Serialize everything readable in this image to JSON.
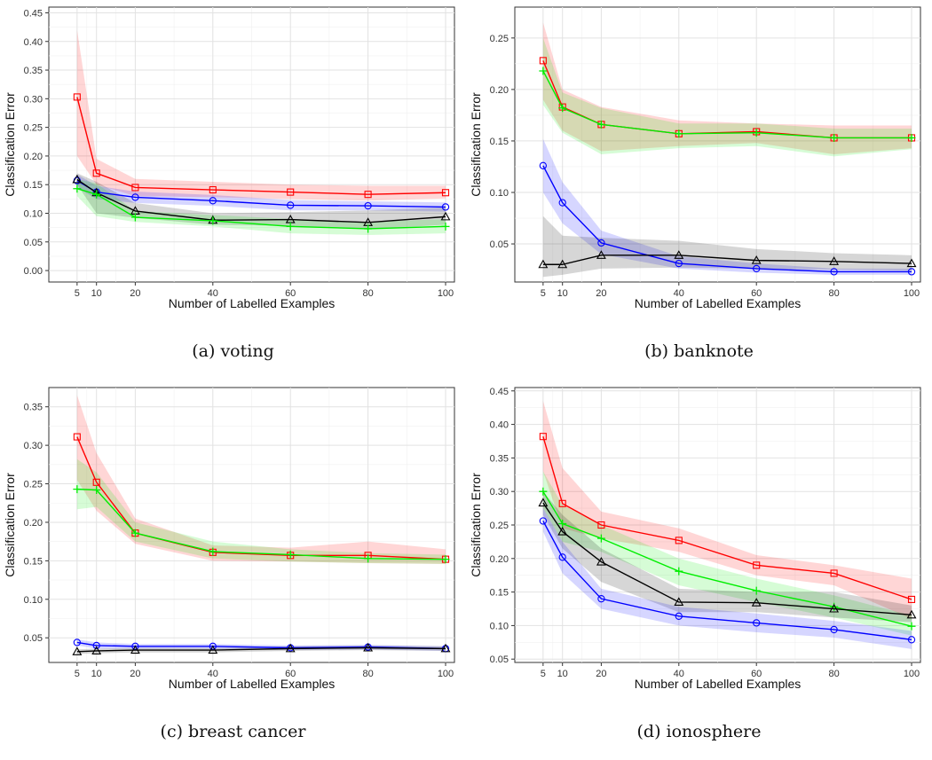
{
  "chart_data": [
    {
      "type": "line",
      "caption": "(a)  voting",
      "xlabel": "Number of Labelled Examples",
      "ylabel": "Classification Error",
      "x": [
        5,
        10,
        20,
        40,
        60,
        80,
        100
      ],
      "xlim": [
        0,
        100
      ],
      "ylim": [
        -0.02,
        0.46
      ],
      "yticks": [
        0.0,
        0.05,
        0.1,
        0.15,
        0.2,
        0.25,
        0.3,
        0.35,
        0.4,
        0.45
      ],
      "grid": true,
      "series": [
        {
          "color": "#ff0000",
          "marker": "square",
          "values": [
            0.303,
            0.17,
            0.145,
            0.141,
            0.137,
            0.133,
            0.136
          ],
          "lower": [
            0.2,
            0.15,
            0.13,
            0.128,
            0.125,
            0.122,
            0.126
          ],
          "upper": [
            0.42,
            0.195,
            0.16,
            0.155,
            0.15,
            0.148,
            0.148
          ]
        },
        {
          "color": "#0000ff",
          "marker": "circle",
          "values": [
            0.157,
            0.137,
            0.128,
            0.122,
            0.114,
            0.113,
            0.111
          ],
          "lower": [
            0.145,
            0.125,
            0.118,
            0.113,
            0.105,
            0.105,
            0.103
          ],
          "upper": [
            0.168,
            0.148,
            0.138,
            0.132,
            0.123,
            0.121,
            0.119
          ]
        },
        {
          "color": "#000000",
          "marker": "triangle",
          "values": [
            0.159,
            0.136,
            0.104,
            0.088,
            0.089,
            0.084,
            0.094
          ],
          "lower": [
            0.15,
            0.1,
            0.092,
            0.08,
            0.078,
            0.072,
            0.08
          ],
          "upper": [
            0.17,
            0.155,
            0.118,
            0.1,
            0.102,
            0.105,
            0.11
          ]
        },
        {
          "color": "#00ee00",
          "marker": "plus",
          "values": [
            0.143,
            0.133,
            0.093,
            0.087,
            0.077,
            0.073,
            0.077
          ],
          "lower": [
            0.13,
            0.095,
            0.085,
            0.077,
            0.065,
            0.062,
            0.065
          ],
          "upper": [
            0.16,
            0.152,
            0.104,
            0.097,
            0.09,
            0.085,
            0.09
          ]
        }
      ]
    },
    {
      "type": "line",
      "caption": "(b)  banknote",
      "xlabel": "Number of Labelled Examples",
      "ylabel": "Classification Error",
      "x": [
        5,
        10,
        20,
        40,
        60,
        80,
        100
      ],
      "xlim": [
        0,
        100
      ],
      "ylim": [
        0.013,
        0.28
      ],
      "yticks": [
        0.05,
        0.1,
        0.15,
        0.2,
        0.25
      ],
      "grid": true,
      "series": [
        {
          "color": "#ff0000",
          "marker": "square",
          "values": [
            0.228,
            0.183,
            0.166,
            0.157,
            0.159,
            0.153,
            0.153
          ],
          "lower": [
            0.19,
            0.16,
            0.14,
            0.145,
            0.148,
            0.137,
            0.143
          ],
          "upper": [
            0.265,
            0.2,
            0.183,
            0.17,
            0.167,
            0.165,
            0.165
          ]
        },
        {
          "color": "#00ee00",
          "marker": "plus",
          "values": [
            0.218,
            0.182,
            0.166,
            0.157,
            0.158,
            0.153,
            0.153
          ],
          "lower": [
            0.185,
            0.158,
            0.137,
            0.143,
            0.145,
            0.135,
            0.142
          ],
          "upper": [
            0.25,
            0.197,
            0.182,
            0.167,
            0.167,
            0.162,
            0.162
          ]
        },
        {
          "color": "#0000ff",
          "marker": "circle",
          "values": [
            0.126,
            0.09,
            0.051,
            0.031,
            0.026,
            0.023,
            0.023
          ],
          "lower": [
            0.1,
            0.07,
            0.04,
            0.026,
            0.022,
            0.02,
            0.02
          ],
          "upper": [
            0.152,
            0.11,
            0.063,
            0.038,
            0.031,
            0.026,
            0.026
          ]
        },
        {
          "color": "#000000",
          "marker": "triangle",
          "values": [
            0.03,
            0.03,
            0.039,
            0.039,
            0.034,
            0.033,
            0.031
          ],
          "lower": [
            0.018,
            0.02,
            0.026,
            0.027,
            0.026,
            0.025,
            0.024
          ],
          "upper": [
            0.077,
            0.058,
            0.056,
            0.053,
            0.045,
            0.041,
            0.039
          ]
        }
      ]
    },
    {
      "type": "line",
      "caption": "(c)  breast cancer",
      "xlabel": "Number of Labelled Examples",
      "ylabel": "Classification Error",
      "x": [
        5,
        10,
        20,
        40,
        60,
        80,
        100
      ],
      "xlim": [
        0,
        100
      ],
      "ylim": [
        0.018,
        0.375
      ],
      "yticks": [
        0.05,
        0.1,
        0.15,
        0.2,
        0.25,
        0.3,
        0.35
      ],
      "grid": true,
      "series": [
        {
          "color": "#ff0000",
          "marker": "square",
          "values": [
            0.311,
            0.252,
            0.186,
            0.161,
            0.157,
            0.157,
            0.152
          ],
          "lower": [
            0.255,
            0.215,
            0.172,
            0.15,
            0.149,
            0.147,
            0.146
          ],
          "upper": [
            0.365,
            0.29,
            0.205,
            0.17,
            0.167,
            0.175,
            0.165
          ]
        },
        {
          "color": "#00ee00",
          "marker": "plus",
          "values": [
            0.243,
            0.242,
            0.186,
            0.162,
            0.158,
            0.153,
            0.152
          ],
          "lower": [
            0.217,
            0.22,
            0.175,
            0.153,
            0.149,
            0.147,
            0.146
          ],
          "upper": [
            0.282,
            0.265,
            0.2,
            0.175,
            0.165,
            0.16,
            0.158
          ]
        },
        {
          "color": "#0000ff",
          "marker": "circle",
          "values": [
            0.044,
            0.04,
            0.039,
            0.039,
            0.037,
            0.038,
            0.036
          ],
          "lower": [
            0.04,
            0.036,
            0.036,
            0.036,
            0.034,
            0.035,
            0.033
          ],
          "upper": [
            0.048,
            0.044,
            0.042,
            0.042,
            0.04,
            0.041,
            0.039
          ]
        },
        {
          "color": "#000000",
          "marker": "triangle",
          "values": [
            0.032,
            0.033,
            0.034,
            0.034,
            0.036,
            0.037,
            0.036
          ],
          "lower": [
            0.029,
            0.03,
            0.031,
            0.031,
            0.033,
            0.034,
            0.033
          ],
          "upper": [
            0.035,
            0.036,
            0.037,
            0.037,
            0.039,
            0.04,
            0.039
          ]
        }
      ]
    },
    {
      "type": "line",
      "caption": "(d)  ionosphere",
      "xlabel": "Number of Labelled Examples",
      "ylabel": "Classification Error",
      "x": [
        5,
        10,
        20,
        40,
        60,
        80,
        100
      ],
      "xlim": [
        0,
        100
      ],
      "ylim": [
        0.045,
        0.455
      ],
      "yticks": [
        0.05,
        0.1,
        0.15,
        0.2,
        0.25,
        0.3,
        0.35,
        0.4,
        0.45
      ],
      "grid": true,
      "series": [
        {
          "color": "#ff0000",
          "marker": "square",
          "values": [
            0.382,
            0.282,
            0.25,
            0.227,
            0.19,
            0.178,
            0.139
          ],
          "lower": [
            0.33,
            0.245,
            0.23,
            0.21,
            0.175,
            0.16,
            0.11
          ],
          "upper": [
            0.435,
            0.335,
            0.27,
            0.245,
            0.205,
            0.19,
            0.17
          ]
        },
        {
          "color": "#00ee00",
          "marker": "plus",
          "values": [
            0.3,
            0.252,
            0.23,
            0.181,
            0.152,
            0.128,
            0.099
          ],
          "lower": [
            0.275,
            0.225,
            0.21,
            0.16,
            0.135,
            0.112,
            0.085
          ],
          "upper": [
            0.33,
            0.28,
            0.25,
            0.2,
            0.17,
            0.145,
            0.115
          ]
        },
        {
          "color": "#000000",
          "marker": "triangle",
          "values": [
            0.283,
            0.24,
            0.195,
            0.135,
            0.134,
            0.125,
            0.116
          ],
          "lower": [
            0.265,
            0.215,
            0.165,
            0.12,
            0.12,
            0.112,
            0.105
          ],
          "upper": [
            0.3,
            0.265,
            0.215,
            0.155,
            0.15,
            0.15,
            0.13
          ]
        },
        {
          "color": "#0000ff",
          "marker": "circle",
          "values": [
            0.256,
            0.202,
            0.14,
            0.114,
            0.104,
            0.094,
            0.079
          ],
          "lower": [
            0.24,
            0.178,
            0.125,
            0.1,
            0.09,
            0.082,
            0.065
          ],
          "upper": [
            0.275,
            0.225,
            0.155,
            0.128,
            0.118,
            0.107,
            0.092
          ]
        }
      ]
    }
  ]
}
